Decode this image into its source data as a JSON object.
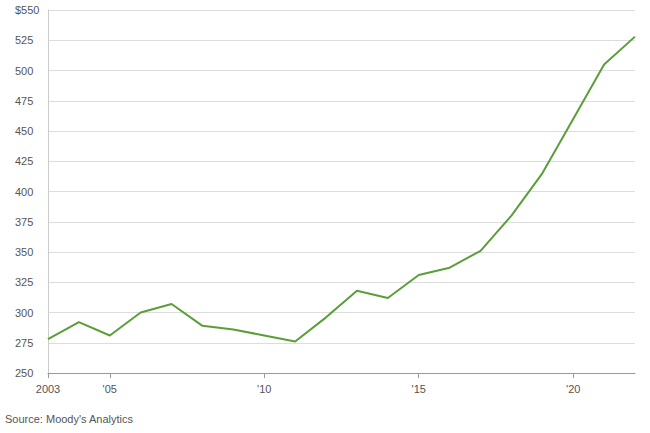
{
  "chart_data": {
    "type": "line",
    "source": "Source: Moody's Analytics",
    "categories": [
      "2003",
      null,
      "'05",
      null,
      null,
      null,
      null,
      "'10",
      null,
      null,
      null,
      null,
      "'15",
      null,
      null,
      null,
      null,
      "'20",
      null,
      null
    ],
    "values": [
      278,
      292,
      281,
      300,
      307,
      289,
      286,
      281,
      276,
      296,
      318,
      312,
      331,
      337,
      351,
      380,
      415,
      460,
      505,
      528
    ],
    "color": "#5a9e3a",
    "ylim": [
      250,
      550
    ],
    "yticks": [
      250,
      275,
      300,
      325,
      350,
      375,
      400,
      425,
      450,
      475,
      500,
      525,
      {
        "value": 550,
        "label": "$550"
      }
    ],
    "grid": true
  }
}
